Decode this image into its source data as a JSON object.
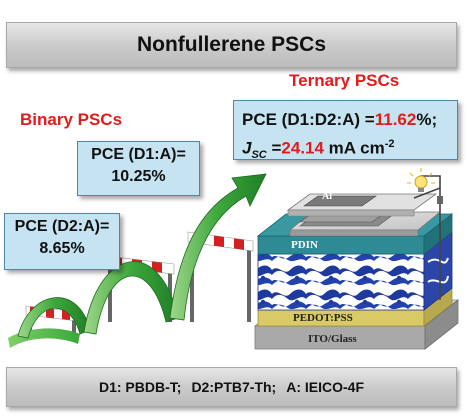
{
  "title": "Nonfullerene PSCs",
  "binary": {
    "label": "Binary PSCs",
    "d1_line1": "PCE (D1:A)=",
    "d1_line2": "10.25%",
    "d2_line1": "PCE (D2:A)=",
    "d2_line2": "8.65%"
  },
  "ternary": {
    "label": "Ternary PSCs",
    "pce_prefix": "PCE (D1:D2:A) =",
    "pce_value": "11.62",
    "pce_suffix": "%;",
    "jsc_symbol": "J",
    "jsc_sub": "SC",
    "jsc_eq": " =",
    "jsc_value": "24.14",
    "jsc_unit": " mA cm",
    "jsc_exp": "-2"
  },
  "device": {
    "top_electrode": "Al",
    "etl": "PDIN",
    "htl": "PEDOT:PSS",
    "substrate": "ITO/Glass"
  },
  "footer": {
    "d1": "D1: PBDB-T;",
    "d2": "D2:PTB7-Th;",
    "acceptor": "A: IEICO-4F"
  },
  "colors": {
    "accent_red": "#e21b1b",
    "box_fill": "#c6e3f2",
    "arrow_green": "#2f9e33",
    "hurdle_red": "#d42020",
    "etl_teal": "#2e8a94",
    "htl_yellow": "#d9c967",
    "blend_blue": "#1f3a9e"
  },
  "icons": {
    "bulb": "lightbulb-icon",
    "arrow": "growth-arrow-icon"
  }
}
